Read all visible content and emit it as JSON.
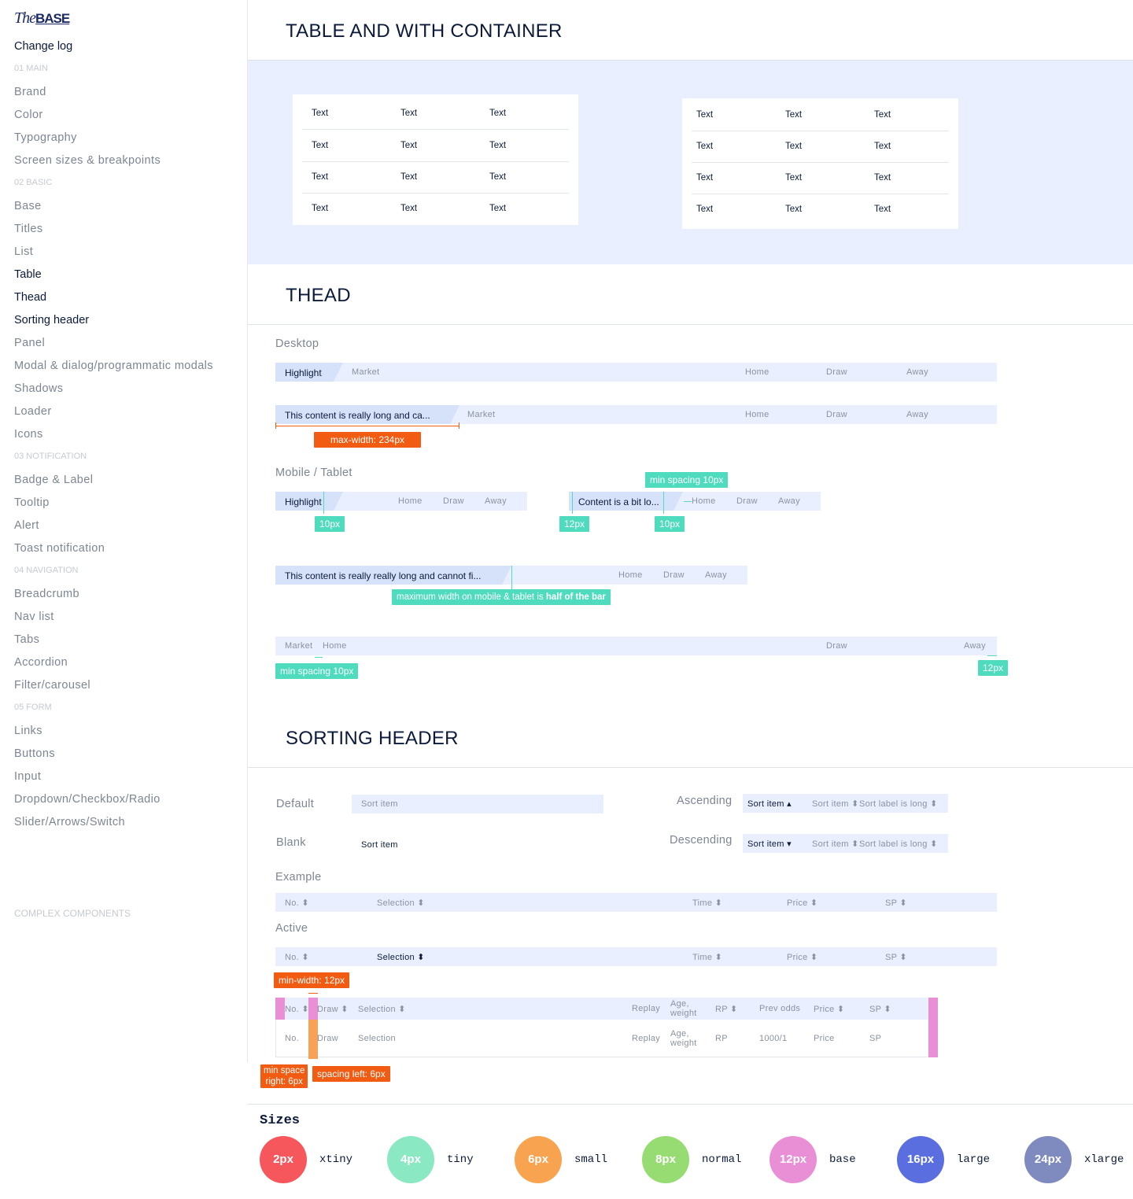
{
  "sidebar": {
    "logo_script": "The",
    "logo_bold": "BASE",
    "changelog": "Change log",
    "s1": "01 MAIN",
    "brand": "Brand",
    "color": "Color",
    "typography": "Typography",
    "screens": "Screen sizes & breakpoints",
    "s2": "02 BASIC",
    "base": "Base",
    "titles": "Titles",
    "list": "List",
    "table": "Table",
    "thead": "Thead",
    "sorting": "Sorting header",
    "panel": "Panel",
    "modal": "Modal & dialog/programmatic modals",
    "shadows": "Shadows",
    "loader": "Loader",
    "icons": "Icons",
    "s3": "03 NOTIFICATION",
    "badge": "Badge & Label",
    "tooltip": "Tooltip",
    "alert": "Alert",
    "toast": "Toast notification",
    "s4": "04 NAVIGATION",
    "breadcrumb": "Breadcrumb",
    "navlist": "Nav list",
    "tabs": "Tabs",
    "accordion": "Accordion",
    "filter": "Filter/carousel",
    "s5": "05 FORM",
    "links": "Links",
    "buttons": "Buttons",
    "input": "Input",
    "dropdown": "Dropdown/Checkbox/Radio",
    "slider": "Slider/Arrows/Switch",
    "complex": "COMPLEX COMPONENTS"
  },
  "table_section": {
    "title": "TABLE AND WITH CONTAINER",
    "cell": "Text"
  },
  "thead": {
    "title": "THEAD",
    "desktop": "Desktop",
    "highlight": "Highlight",
    "market": "Market",
    "home": "Home",
    "draw": "Draw",
    "away": "Away",
    "long_desktop": "This content is really long and ca...",
    "maxwidth_tag": "max-width: 234px",
    "mobile": "Mobile / Tablet",
    "bit_long": "Content is a bit lo...",
    "min_spacing": "min spacing 10px",
    "t10": "10px",
    "t12": "12px",
    "long_mobile": "This content is really really long and cannot fi...",
    "half_tag_a": "maximum width on mobile & tablet is ",
    "half_tag_b": "half of the bar"
  },
  "sorting": {
    "title": "SORTING HEADER",
    "default": "Default",
    "blank": "Blank",
    "ascending": "Ascending",
    "descending": "Descending",
    "sort_item": "Sort item",
    "sort_long": "Sort label is long",
    "example": "Example",
    "active": "Active",
    "no": "No.",
    "selection": "Selection",
    "time": "Time",
    "price": "Price",
    "sp": "SP",
    "minwidth_tag": "min-width: 12px",
    "draw": "Draw",
    "replay": "Replay",
    "age": "Age,",
    "weight": "weight",
    "rp": "RP",
    "prev_odds": "Prev odds",
    "odds_value": "1000/1",
    "min_space_right_a": "min space",
    "min_space_right_b": "right: 6px",
    "spacing_left": "spacing left: 6px"
  },
  "sizes": {
    "title": "Sizes",
    "items": [
      {
        "value": "2px",
        "name": "xtiny",
        "color": "#f5575c"
      },
      {
        "value": "4px",
        "name": "tiny",
        "color": "#8ae8c2"
      },
      {
        "value": "6px",
        "name": "small",
        "color": "#f7a350"
      },
      {
        "value": "8px",
        "name": "normal",
        "color": "#96dc72"
      },
      {
        "value": "12px",
        "name": "base",
        "color": "#e88fd6"
      },
      {
        "value": "16px",
        "name": "large",
        "color": "#5b6ee0"
      },
      {
        "value": "24px",
        "name": "xlarge",
        "color": "#7f8abf"
      }
    ]
  },
  "colors": {
    "accent_orange": "#f25b12",
    "accent_teal": "#4fdcbe",
    "bar_bg": "#e9effe"
  }
}
